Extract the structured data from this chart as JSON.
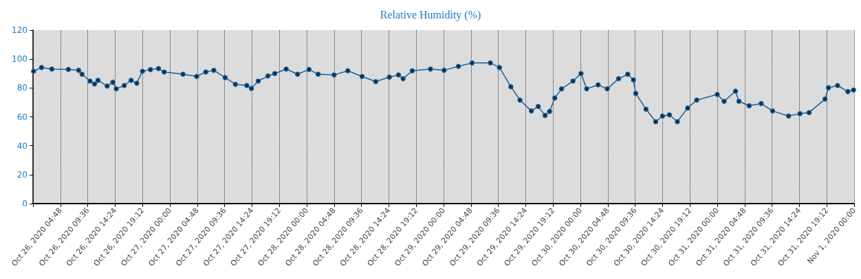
{
  "chart_data": {
    "type": "line",
    "title": "Relative Humidity (%)",
    "x": [
      "2020-10-26T00:06",
      "2020-10-26T01:30",
      "2020-10-26T03:18",
      "2020-10-26T06:12",
      "2020-10-26T08:00",
      "2020-10-26T08:36",
      "2020-10-26T10:00",
      "2020-10-26T10:48",
      "2020-10-26T11:24",
      "2020-10-26T13:00",
      "2020-10-26T14:00",
      "2020-10-26T14:36",
      "2020-10-26T16:00",
      "2020-10-26T17:12",
      "2020-10-26T18:12",
      "2020-10-26T19:12",
      "2020-10-26T20:36",
      "2020-10-26T22:00",
      "2020-10-26T23:00",
      "2020-10-27T02:18",
      "2020-10-27T04:42",
      "2020-10-27T06:18",
      "2020-10-27T07:42",
      "2020-10-27T09:42",
      "2020-10-27T11:30",
      "2020-10-27T13:30",
      "2020-10-27T14:18",
      "2020-10-27T15:30",
      "2020-10-27T17:12",
      "2020-10-27T18:24",
      "2020-10-27T20:24",
      "2020-10-27T22:24",
      "2020-10-28T00:24",
      "2020-10-28T02:00",
      "2020-10-28T04:48",
      "2020-10-28T07:12",
      "2020-10-28T09:42",
      "2020-10-28T12:06",
      "2020-10-28T14:30",
      "2020-10-28T16:06",
      "2020-10-28T16:54",
      "2020-10-28T18:30",
      "2020-10-28T21:42",
      "2020-10-29T00:06",
      "2020-10-29T02:36",
      "2020-10-29T05:00",
      "2020-10-29T08:12",
      "2020-10-29T09:48",
      "2020-10-29T11:48",
      "2020-10-29T13:24",
      "2020-10-29T15:24",
      "2020-10-29T16:36",
      "2020-10-29T17:48",
      "2020-10-29T18:36",
      "2020-10-29T19:30",
      "2020-10-29T20:42",
      "2020-10-29T22:42",
      "2020-10-30T00:06",
      "2020-10-30T01:06",
      "2020-10-30T03:06",
      "2020-10-30T04:42",
      "2020-10-30T06:42",
      "2020-10-30T08:18",
      "2020-10-30T09:18",
      "2020-10-30T09:42",
      "2020-10-30T11:30",
      "2020-10-30T13:12",
      "2020-10-30T14:24",
      "2020-10-30T15:36",
      "2020-10-30T17:00",
      "2020-10-30T18:48",
      "2020-10-30T20:24",
      "2020-10-31T00:00",
      "2020-10-31T01:12",
      "2020-10-31T03:12",
      "2020-10-31T03:48",
      "2020-10-31T05:36",
      "2020-10-31T07:42",
      "2020-10-31T09:42",
      "2020-10-31T12:30",
      "2020-10-31T14:30",
      "2020-10-31T16:06",
      "2020-10-31T18:54",
      "2020-10-31T19:30",
      "2020-10-31T21:06",
      "2020-10-31T22:54",
      "2020-10-31T23:54"
    ],
    "series": [
      {
        "color": "#1a5e96",
        "values": [
          91.6,
          94.2,
          93.1,
          92.8,
          92.2,
          89.5,
          84.8,
          82.8,
          85.3,
          81.3,
          84,
          79.4,
          81.7,
          85.3,
          83.3,
          91.6,
          92.7,
          93.4,
          91.1,
          89.5,
          88,
          91.1,
          92.2,
          87.2,
          82.5,
          81.7,
          79.7,
          84.8,
          88.3,
          90,
          93.1,
          89.5,
          92.8,
          89.5,
          89,
          91.9,
          88,
          84.4,
          87.5,
          89,
          86.4,
          91.9,
          93.1,
          92.2,
          95,
          97.3,
          97.3,
          94.2,
          80.9,
          71.6,
          64.1,
          67.2,
          61,
          63.8,
          73.1,
          79.4,
          84.8,
          90,
          79.4,
          82.2,
          79.4,
          86.4,
          89.5,
          85.6,
          76.3,
          65.3,
          56.7,
          60.6,
          61.4,
          56.7,
          66.1,
          71.6,
          75.5,
          70.8,
          77.8,
          70.8,
          67.7,
          69.2,
          64.1,
          60.6,
          62.2,
          63,
          72.3,
          80.2,
          81.7,
          77.5,
          78.6
        ]
      }
    ],
    "xlim": [
      "2020-10-26T00:00",
      "2020-11-01T00:00"
    ],
    "xticks": [
      {
        "value": "2020-10-26T00:00",
        "label": null
      },
      {
        "value": "2020-10-26T04:48",
        "label": "Oct 26, 2020 04:48"
      },
      {
        "value": "2020-10-26T09:36",
        "label": "Oct 26, 2020 09:36"
      },
      {
        "value": "2020-10-26T14:24",
        "label": "Oct 26, 2020 14:24"
      },
      {
        "value": "2020-10-26T19:12",
        "label": "Oct 26, 2020 19:12"
      },
      {
        "value": "2020-10-27T00:00",
        "label": "Oct 27, 2020 00:00"
      },
      {
        "value": "2020-10-27T04:48",
        "label": "Oct 27, 2020 04:48"
      },
      {
        "value": "2020-10-27T09:36",
        "label": "Oct 27, 2020 09:36"
      },
      {
        "value": "2020-10-27T14:24",
        "label": "Oct 27, 2020 14:24"
      },
      {
        "value": "2020-10-27T19:12",
        "label": "Oct 27, 2020 19:12"
      },
      {
        "value": "2020-10-28T00:00",
        "label": "Oct 28, 2020 00:00"
      },
      {
        "value": "2020-10-28T04:48",
        "label": "Oct 28, 2020 04:48"
      },
      {
        "value": "2020-10-28T09:36",
        "label": "Oct 28, 2020 09:36"
      },
      {
        "value": "2020-10-28T14:24",
        "label": "Oct 28, 2020 14:24"
      },
      {
        "value": "2020-10-28T19:12",
        "label": "Oct 28, 2020 19:12"
      },
      {
        "value": "2020-10-29T00:00",
        "label": "Oct 29, 2020 00:00"
      },
      {
        "value": "2020-10-29T04:48",
        "label": "Oct 29, 2020 04:48"
      },
      {
        "value": "2020-10-29T09:36",
        "label": "Oct 29, 2020 09:36"
      },
      {
        "value": "2020-10-29T14:24",
        "label": "Oct 29, 2020 14:24"
      },
      {
        "value": "2020-10-29T19:12",
        "label": "Oct 29, 2020 19:12"
      },
      {
        "value": "2020-10-30T00:00",
        "label": "Oct 30, 2020 00:00"
      },
      {
        "value": "2020-10-30T04:48",
        "label": "Oct 30, 2020 04:48"
      },
      {
        "value": "2020-10-30T09:36",
        "label": "Oct 30, 2020 09:36"
      },
      {
        "value": "2020-10-30T14:24",
        "label": "Oct 30, 2020 14:24"
      },
      {
        "value": "2020-10-30T19:12",
        "label": "Oct 30, 2020 19:12"
      },
      {
        "value": "2020-10-31T00:00",
        "label": "Oct 31, 2020 00:00"
      },
      {
        "value": "2020-10-31T04:48",
        "label": "Oct 31, 2020 04:48"
      },
      {
        "value": "2020-10-31T09:36",
        "label": "Oct 31, 2020 09:36"
      },
      {
        "value": "2020-10-31T14:24",
        "label": "Oct 31, 2020 14:24"
      },
      {
        "value": "2020-10-31T19:12",
        "label": "Oct 31, 2020 19:12"
      },
      {
        "value": "2020-11-01T00:00",
        "label": "Nov 1, 2020 00:00"
      }
    ],
    "ylim": [
      0,
      120
    ],
    "yticks": [
      0,
      20,
      40,
      60,
      80,
      100,
      120
    ],
    "grid": "x",
    "marker": "circle",
    "line_style": "solid"
  }
}
